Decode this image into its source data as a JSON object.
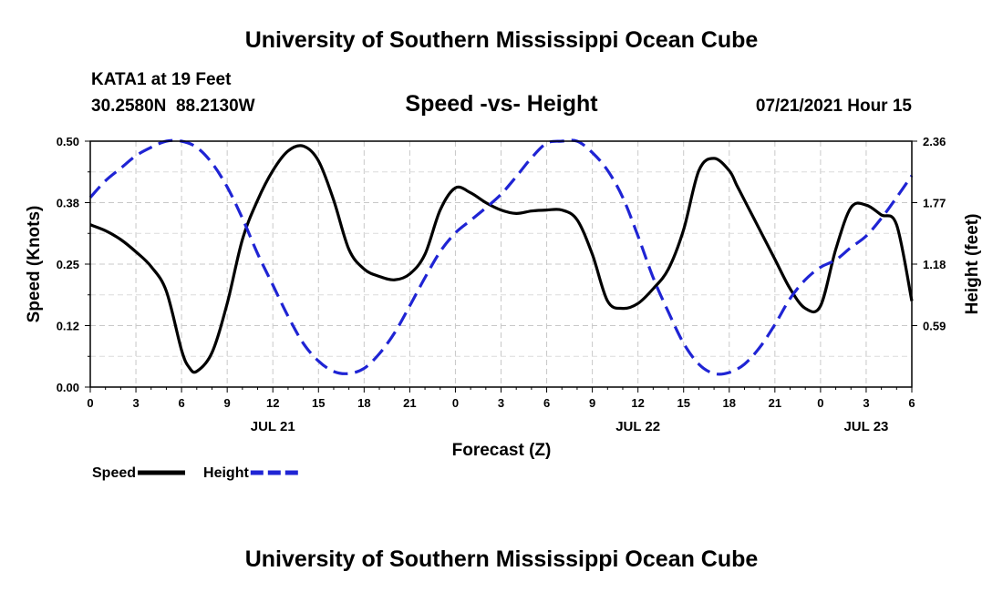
{
  "header": {
    "title_top": "University of Southern Mississippi Ocean Cube",
    "station": "KATA1 at 19 Feet",
    "coords": "30.2580N  88.2130W",
    "subtitle": "Speed -vs- Height",
    "datetime": "07/21/2021 Hour 15",
    "title_bottom": "University of Southern Mississippi Ocean Cube"
  },
  "chart_data": {
    "type": "line",
    "title": "Speed -vs- Height",
    "xlabel": "Forecast (Z)",
    "ylabel_left": "Speed (Knots)",
    "ylabel_right": "Height (feet)",
    "xlim": [
      0,
      54
    ],
    "ylim_left": [
      0,
      0.5
    ],
    "ylim_right": [
      0,
      2.36
    ],
    "x_tick_labels": [
      "0",
      "3",
      "6",
      "9",
      "12",
      "15",
      "18",
      "21",
      "0",
      "3",
      "6",
      "9",
      "12",
      "15",
      "18",
      "21",
      "0",
      "3",
      "6"
    ],
    "date_labels": [
      {
        "x": 12,
        "label": "JUL 21"
      },
      {
        "x": 36,
        "label": "JUL 22"
      },
      {
        "x": 51,
        "label": "JUL 23"
      }
    ],
    "y_left_ticks": [
      "0.00",
      "0.12",
      "0.25",
      "0.38",
      "0.50"
    ],
    "y_left_tick_values": [
      0,
      0.125,
      0.25,
      0.375,
      0.5
    ],
    "y_right_ticks": [
      "0.59",
      "1.18",
      "1.77",
      "2.36"
    ],
    "y_right_tick_values": [
      0.59,
      1.18,
      1.77,
      2.36
    ],
    "grid": true,
    "series": [
      {
        "name": "Speed",
        "axis": "left",
        "color": "#000000",
        "style": "solid",
        "x": [
          0,
          1,
          2,
          3,
          4,
          5,
          6,
          6.5,
          7,
          8,
          9,
          10,
          11,
          12,
          13,
          14,
          15,
          16,
          17,
          18,
          19,
          20,
          21,
          22,
          23,
          24,
          25,
          26,
          27,
          28,
          29,
          30,
          31,
          32,
          33,
          34,
          35,
          36,
          37,
          38,
          39,
          40,
          41,
          42,
          42.5,
          43,
          44,
          45,
          46,
          47,
          48,
          49,
          50,
          51,
          52,
          53,
          54
        ],
        "values": [
          0.33,
          0.318,
          0.3,
          0.275,
          0.245,
          0.195,
          0.075,
          0.04,
          0.032,
          0.07,
          0.17,
          0.3,
          0.38,
          0.44,
          0.48,
          0.49,
          0.46,
          0.38,
          0.28,
          0.24,
          0.225,
          0.218,
          0.23,
          0.27,
          0.36,
          0.405,
          0.395,
          0.375,
          0.36,
          0.353,
          0.358,
          0.36,
          0.36,
          0.34,
          0.27,
          0.175,
          0.16,
          0.17,
          0.2,
          0.24,
          0.32,
          0.44,
          0.465,
          0.44,
          0.41,
          0.38,
          0.32,
          0.26,
          0.2,
          0.16,
          0.165,
          0.28,
          0.365,
          0.37,
          0.35,
          0.33,
          0.175
        ],
        "_x_note": "values sampled from Jul 21 00Z through Jul 23 06Z in forecast hours"
      },
      {
        "name": "Height",
        "axis": "right",
        "color": "#1f24d4",
        "style": "dashed",
        "x": [
          0,
          1,
          2,
          3,
          4,
          5,
          6,
          7,
          8,
          9,
          10,
          11,
          12,
          13,
          14,
          15,
          16,
          17,
          18,
          19,
          20,
          21,
          22,
          23,
          24,
          25,
          26,
          27,
          28,
          29,
          30,
          31,
          32,
          33,
          34,
          35,
          36,
          37,
          38,
          39,
          40,
          41,
          42,
          43,
          44,
          45,
          46,
          47,
          48,
          49,
          50,
          51,
          52,
          53,
          54
        ],
        "values": [
          1.82,
          1.98,
          2.1,
          2.22,
          2.3,
          2.36,
          2.36,
          2.3,
          2.15,
          1.92,
          1.62,
          1.28,
          0.98,
          0.68,
          0.42,
          0.25,
          0.15,
          0.13,
          0.18,
          0.32,
          0.52,
          0.78,
          1.05,
          1.3,
          1.48,
          1.6,
          1.72,
          1.85,
          2.02,
          2.2,
          2.34,
          2.38,
          2.37,
          2.25,
          2.08,
          1.82,
          1.45,
          1.05,
          0.72,
          0.42,
          0.22,
          0.13,
          0.14,
          0.22,
          0.38,
          0.6,
          0.85,
          1.03,
          1.15,
          1.22,
          1.34,
          1.45,
          1.62,
          1.82,
          2.03
        ]
      }
    ],
    "legend": [
      {
        "label": "Speed",
        "color": "#000000",
        "style": "solid"
      },
      {
        "label": "Height",
        "color": "#1f24d4",
        "style": "dashed"
      }
    ]
  }
}
